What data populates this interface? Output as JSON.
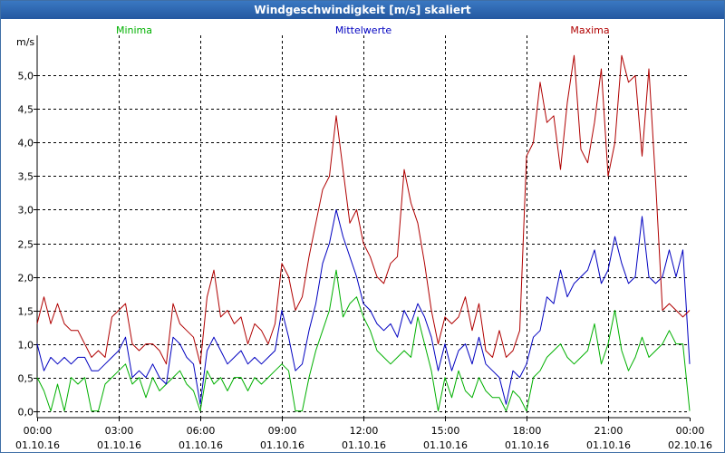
{
  "title": "Windgeschwindigkeit [m/s] skaliert",
  "chart_data": {
    "type": "line",
    "title": "Windgeschwindigkeit [m/s] skaliert",
    "ylabel": "m/s",
    "xlabel": "",
    "ylim": [
      -0.1,
      5.6
    ],
    "xlim": [
      0,
      24
    ],
    "yticks": [
      0.0,
      0.5,
      1.0,
      1.5,
      2.0,
      2.5,
      3.0,
      3.5,
      4.0,
      4.5,
      5.0
    ],
    "ytick_labels": [
      "0,0",
      "0,5",
      "1,0",
      "1,5",
      "2,0",
      "2,5",
      "3,0",
      "3,5",
      "4,0",
      "4,5",
      "5,0"
    ],
    "xticks": [
      0,
      3,
      6,
      9,
      12,
      15,
      18,
      21,
      24
    ],
    "xtick_time_labels": [
      "00:00",
      "03:00",
      "06:00",
      "09:00",
      "12:00",
      "15:00",
      "18:00",
      "21:00",
      "00:00"
    ],
    "xtick_date_labels": [
      "01.10.16",
      "01.10.16",
      "01.10.16",
      "01.10.16",
      "01.10.16",
      "01.10.16",
      "01.10.16",
      "01.10.16",
      "02.10.16"
    ],
    "grid": true,
    "series": [
      {
        "name": "Minima",
        "color": "#00b000",
        "x": [
          0,
          0.25,
          0.5,
          0.75,
          1,
          1.25,
          1.5,
          1.75,
          2,
          2.25,
          2.5,
          2.75,
          3,
          3.25,
          3.5,
          3.75,
          4,
          4.25,
          4.5,
          4.75,
          5,
          5.25,
          5.5,
          5.75,
          6,
          6.25,
          6.5,
          6.75,
          7,
          7.25,
          7.5,
          7.75,
          8,
          8.25,
          8.5,
          8.75,
          9,
          9.25,
          9.5,
          9.75,
          10,
          10.25,
          10.5,
          10.75,
          11,
          11.25,
          11.5,
          11.75,
          12,
          12.25,
          12.5,
          12.75,
          13,
          13.25,
          13.5,
          13.75,
          14,
          14.25,
          14.5,
          14.75,
          15,
          15.25,
          15.5,
          15.75,
          16,
          16.25,
          16.5,
          16.75,
          17,
          17.25,
          17.5,
          17.75,
          18,
          18.25,
          18.5,
          18.75,
          19,
          19.25,
          19.5,
          19.75,
          20,
          20.25,
          20.5,
          20.75,
          21,
          21.25,
          21.5,
          21.75,
          22,
          22.25,
          22.5,
          22.75,
          23,
          23.25,
          23.5,
          23.75,
          24
        ],
        "values": [
          0.5,
          0.3,
          0.0,
          0.4,
          0.0,
          0.5,
          0.4,
          0.5,
          0.0,
          0.0,
          0.4,
          0.5,
          0.6,
          0.7,
          0.4,
          0.5,
          0.2,
          0.5,
          0.3,
          0.4,
          0.5,
          0.6,
          0.4,
          0.3,
          0.0,
          0.6,
          0.4,
          0.5,
          0.3,
          0.5,
          0.5,
          0.3,
          0.5,
          0.4,
          0.5,
          0.6,
          0.7,
          0.6,
          0.0,
          0.0,
          0.5,
          0.9,
          1.2,
          1.5,
          2.1,
          1.4,
          1.6,
          1.7,
          1.4,
          1.2,
          0.9,
          0.8,
          0.7,
          0.8,
          0.9,
          0.8,
          1.4,
          1.0,
          0.6,
          0.0,
          0.5,
          0.2,
          0.6,
          0.3,
          0.2,
          0.5,
          0.3,
          0.2,
          0.2,
          0.0,
          0.3,
          0.2,
          0.0,
          0.5,
          0.6,
          0.8,
          0.9,
          1.0,
          0.8,
          0.7,
          0.8,
          0.9,
          1.3,
          0.7,
          1.0,
          1.5,
          0.9,
          0.6,
          0.8,
          1.1,
          0.8,
          0.9,
          1.0,
          1.2,
          1.0,
          1.0,
          0.0
        ]
      },
      {
        "name": "Mittelwerte",
        "color": "#0000c0",
        "x": [
          0,
          0.25,
          0.5,
          0.75,
          1,
          1.25,
          1.5,
          1.75,
          2,
          2.25,
          2.5,
          2.75,
          3,
          3.25,
          3.5,
          3.75,
          4,
          4.25,
          4.5,
          4.75,
          5,
          5.25,
          5.5,
          5.75,
          6,
          6.25,
          6.5,
          6.75,
          7,
          7.25,
          7.5,
          7.75,
          8,
          8.25,
          8.5,
          8.75,
          9,
          9.25,
          9.5,
          9.75,
          10,
          10.25,
          10.5,
          10.75,
          11,
          11.25,
          11.5,
          11.75,
          12,
          12.25,
          12.5,
          12.75,
          13,
          13.25,
          13.5,
          13.75,
          14,
          14.25,
          14.5,
          14.75,
          15,
          15.25,
          15.5,
          15.75,
          16,
          16.25,
          16.5,
          16.75,
          17,
          17.25,
          17.5,
          17.75,
          18,
          18.25,
          18.5,
          18.75,
          19,
          19.25,
          19.5,
          19.75,
          20,
          20.25,
          20.5,
          20.75,
          21,
          21.25,
          21.5,
          21.75,
          22,
          22.25,
          22.5,
          22.75,
          23,
          23.25,
          23.5,
          23.75,
          24
        ],
        "values": [
          1.0,
          0.6,
          0.8,
          0.7,
          0.8,
          0.7,
          0.8,
          0.8,
          0.6,
          0.6,
          0.7,
          0.8,
          0.9,
          1.1,
          0.5,
          0.6,
          0.5,
          0.7,
          0.5,
          0.4,
          1.1,
          1.0,
          0.8,
          0.7,
          0.1,
          0.9,
          1.1,
          0.9,
          0.7,
          0.8,
          0.9,
          0.7,
          0.8,
          0.7,
          0.8,
          0.9,
          1.5,
          1.1,
          0.6,
          0.7,
          1.2,
          1.6,
          2.2,
          2.5,
          3.0,
          2.6,
          2.3,
          2.0,
          1.6,
          1.5,
          1.3,
          1.2,
          1.3,
          1.1,
          1.5,
          1.3,
          1.6,
          1.4,
          1.1,
          0.6,
          1.0,
          0.6,
          0.9,
          1.0,
          0.7,
          1.1,
          0.7,
          0.6,
          0.5,
          0.1,
          0.6,
          0.5,
          0.7,
          1.1,
          1.2,
          1.7,
          1.6,
          2.1,
          1.7,
          1.9,
          2.0,
          2.1,
          2.4,
          1.9,
          2.1,
          2.6,
          2.2,
          1.9,
          2.0,
          2.9,
          2.0,
          1.9,
          2.0,
          2.4,
          2.0,
          2.4,
          0.7
        ]
      },
      {
        "name": "Maxima",
        "color": "#b00000",
        "x": [
          0,
          0.25,
          0.5,
          0.75,
          1,
          1.25,
          1.5,
          1.75,
          2,
          2.25,
          2.5,
          2.75,
          3,
          3.25,
          3.5,
          3.75,
          4,
          4.25,
          4.5,
          4.75,
          5,
          5.25,
          5.5,
          5.75,
          6,
          6.25,
          6.5,
          6.75,
          7,
          7.25,
          7.5,
          7.75,
          8,
          8.25,
          8.5,
          8.75,
          9,
          9.25,
          9.5,
          9.75,
          10,
          10.25,
          10.5,
          10.75,
          11,
          11.25,
          11.5,
          11.75,
          12,
          12.25,
          12.5,
          12.75,
          13,
          13.25,
          13.5,
          13.75,
          14,
          14.25,
          14.5,
          14.75,
          15,
          15.25,
          15.5,
          15.75,
          16,
          16.25,
          16.5,
          16.75,
          17,
          17.25,
          17.5,
          17.75,
          18,
          18.25,
          18.5,
          18.75,
          19,
          19.25,
          19.5,
          19.75,
          20,
          20.25,
          20.5,
          20.75,
          21,
          21.25,
          21.5,
          21.75,
          22,
          22.25,
          22.5,
          22.75,
          23,
          23.25,
          23.5,
          23.75,
          24
        ],
        "values": [
          1.3,
          1.7,
          1.3,
          1.6,
          1.3,
          1.2,
          1.2,
          1.0,
          0.8,
          0.9,
          0.8,
          1.4,
          1.5,
          1.6,
          1.0,
          0.9,
          1.0,
          1.0,
          0.9,
          0.7,
          1.6,
          1.3,
          1.2,
          1.1,
          0.7,
          1.7,
          2.1,
          1.4,
          1.5,
          1.3,
          1.4,
          1.0,
          1.3,
          1.2,
          1.0,
          1.3,
          2.2,
          2.0,
          1.5,
          1.7,
          2.3,
          2.8,
          3.3,
          3.5,
          4.4,
          3.6,
          2.8,
          3.0,
          2.5,
          2.3,
          2.0,
          1.9,
          2.2,
          2.3,
          3.6,
          3.1,
          2.8,
          2.2,
          1.5,
          1.0,
          1.4,
          1.3,
          1.4,
          1.7,
          1.2,
          1.6,
          0.9,
          0.8,
          1.2,
          0.8,
          0.9,
          1.2,
          3.8,
          4.0,
          4.9,
          4.3,
          4.4,
          3.6,
          4.6,
          5.3,
          3.9,
          3.7,
          4.3,
          5.1,
          3.5,
          4.0,
          5.3,
          4.9,
          5.0,
          3.8,
          5.1,
          3.4,
          1.5,
          1.6,
          1.5,
          1.4,
          1.5
        ]
      }
    ]
  }
}
